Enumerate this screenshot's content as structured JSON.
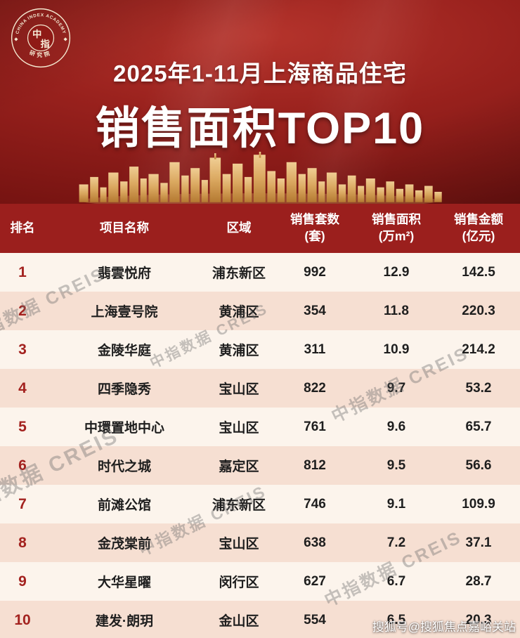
{
  "banner": {
    "subtitle": "2025年1-11月上海商品住宅",
    "title": "销售面积TOP10"
  },
  "logo": {
    "arc_top": "CHINA INDEX ACADEMY",
    "arc_bottom": "研究院",
    "seal_char1": "中",
    "seal_char2": "指"
  },
  "table": {
    "headers": {
      "rank": "排名",
      "name": "项目名称",
      "district": "区域",
      "units_l1": "销售套数",
      "units_l2": "(套)",
      "area_l1": "销售面积",
      "area_l2": "(万m²)",
      "amount_l1": "销售金额",
      "amount_l2": "(亿元)"
    },
    "rows": [
      {
        "rank": "1",
        "name": "翡雲悦府",
        "district": "浦东新区",
        "units": "992",
        "area": "12.9",
        "amount": "142.5"
      },
      {
        "rank": "2",
        "name": "上海壹号院",
        "district": "黄浦区",
        "units": "354",
        "area": "11.8",
        "amount": "220.3"
      },
      {
        "rank": "3",
        "name": "金陵华庭",
        "district": "黄浦区",
        "units": "311",
        "area": "10.9",
        "amount": "214.2"
      },
      {
        "rank": "4",
        "name": "四季隐秀",
        "district": "宝山区",
        "units": "822",
        "area": "9.7",
        "amount": "53.2"
      },
      {
        "rank": "5",
        "name": "中環置地中心",
        "district": "宝山区",
        "units": "761",
        "area": "9.6",
        "amount": "65.7"
      },
      {
        "rank": "6",
        "name": "时代之城",
        "district": "嘉定区",
        "units": "812",
        "area": "9.5",
        "amount": "56.6"
      },
      {
        "rank": "7",
        "name": "前滩公馆",
        "district": "浦东新区",
        "units": "746",
        "area": "9.1",
        "amount": "109.9"
      },
      {
        "rank": "8",
        "name": "金茂棠前",
        "district": "宝山区",
        "units": "638",
        "area": "7.2",
        "amount": "37.1"
      },
      {
        "rank": "9",
        "name": "大华星曜",
        "district": "闵行区",
        "units": "627",
        "area": "6.7",
        "amount": "28.7"
      },
      {
        "rank": "10",
        "name": "建发·朗玥",
        "district": "金山区",
        "units": "554",
        "area": "6.5",
        "amount": "20.3"
      }
    ]
  },
  "watermarks": [
    "中指数据 CREIS",
    "中指数据 CREIS",
    "中指数据 CREIS",
    "中指数据 CREIS",
    "中指数据 CREIS",
    "中指数据 CREIS"
  ],
  "footer": {
    "credit": "搜狐号@搜狐焦点嘉峪关站"
  },
  "colors": {
    "banner_red": "#99211D",
    "header_red": "#9B1F1D",
    "rank_red": "#A3221F",
    "row_light": "#FCF4EC",
    "row_peach": "#F6DFD2",
    "skyline_gold": "#DFAF63"
  },
  "chart_data": {
    "type": "table",
    "title": "2025年1-11月上海商品住宅销售面积TOP10",
    "columns": [
      "排名",
      "项目名称",
      "区域",
      "销售套数(套)",
      "销售面积(万m²)",
      "销售金额(亿元)"
    ],
    "rows": [
      [
        1,
        "翡雲悦府",
        "浦东新区",
        992,
        12.9,
        142.5
      ],
      [
        2,
        "上海壹号院",
        "黄浦区",
        354,
        11.8,
        220.3
      ],
      [
        3,
        "金陵华庭",
        "黄浦区",
        311,
        10.9,
        214.2
      ],
      [
        4,
        "四季隐秀",
        "宝山区",
        822,
        9.7,
        53.2
      ],
      [
        5,
        "中環置地中心",
        "宝山区",
        761,
        9.6,
        65.7
      ],
      [
        6,
        "时代之城",
        "嘉定区",
        812,
        9.5,
        56.6
      ],
      [
        7,
        "前滩公馆",
        "浦东新区",
        746,
        9.1,
        109.9
      ],
      [
        8,
        "金茂棠前",
        "宝山区",
        638,
        7.2,
        37.1
      ],
      [
        9,
        "大华星曜",
        "闵行区",
        627,
        6.7,
        28.7
      ],
      [
        10,
        "建发·朗玥",
        "金山区",
        554,
        6.5,
        20.3
      ]
    ]
  }
}
